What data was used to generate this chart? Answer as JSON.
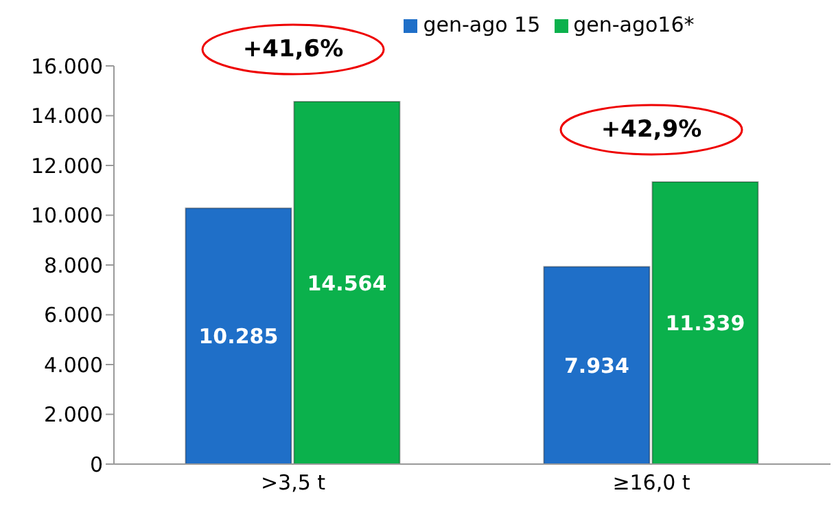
{
  "chart_data": {
    "type": "bar",
    "categories": [
      ">3,5 t",
      "≥16,0 t"
    ],
    "series": [
      {
        "name": "gen-ago 15",
        "color": "#1f6fc8",
        "values": [
          10285,
          7934
        ],
        "value_labels": [
          "10.285",
          "7.934"
        ]
      },
      {
        "name": "gen-ago16*",
        "color": "#0bb14c",
        "values": [
          14564,
          11339
        ],
        "value_labels": [
          "14.564",
          "11.339"
        ]
      }
    ],
    "ylim": [
      0,
      16000
    ],
    "yticks": [
      {
        "value": 0,
        "label": "0"
      },
      {
        "value": 2000,
        "label": "2.000"
      },
      {
        "value": 4000,
        "label": "4.000"
      },
      {
        "value": 6000,
        "label": "6.000"
      },
      {
        "value": 8000,
        "label": "8.000"
      },
      {
        "value": 10000,
        "label": "10.000"
      },
      {
        "value": 12000,
        "label": "12.000"
      },
      {
        "value": 14000,
        "label": "14.000"
      },
      {
        "value": 16000,
        "label": "16.000"
      }
    ],
    "annotations": [
      "+41,6%",
      "+42,9%"
    ],
    "grid": false,
    "legend": "top"
  }
}
